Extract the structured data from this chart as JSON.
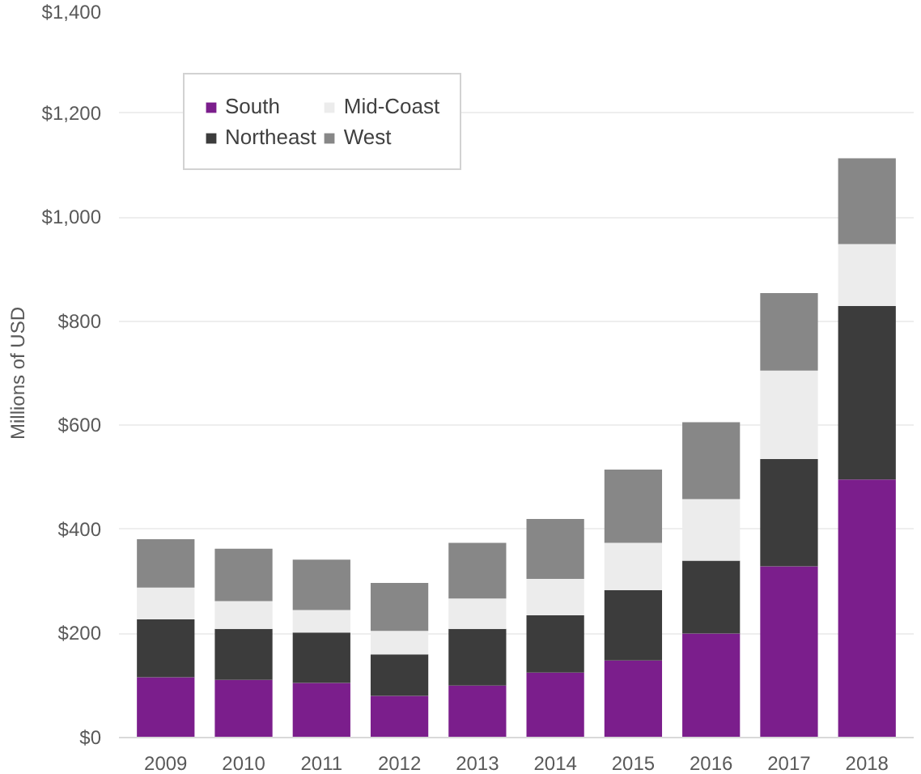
{
  "chart_data": {
    "type": "bar",
    "stacked": true,
    "ylabel": "Millions of USD",
    "categories": [
      "2009",
      "2010",
      "2011",
      "2012",
      "2013",
      "2014",
      "2015",
      "2016",
      "2017",
      "2018"
    ],
    "series": [
      {
        "name": "South",
        "color": "#7b1e8c",
        "values": [
          116,
          111,
          105,
          80,
          100,
          125,
          148,
          200,
          329,
          496
        ]
      },
      {
        "name": "Northeast",
        "color": "#3c3c3c",
        "values": [
          111,
          98,
          97,
          80,
          109,
          110,
          135,
          140,
          206,
          333
        ]
      },
      {
        "name": "Mid-Coast",
        "color": "#ececec",
        "values": [
          61,
          53,
          43,
          45,
          58,
          70,
          91,
          118,
          170,
          119
        ]
      },
      {
        "name": "West",
        "color": "#878787",
        "values": [
          93,
          101,
          97,
          92,
          107,
          115,
          141,
          148,
          149,
          165
        ]
      }
    ],
    "ylim": [
      0,
      1400
    ],
    "yticks": [
      {
        "value": 0,
        "label": "$0"
      },
      {
        "value": 200,
        "label": "$200"
      },
      {
        "value": 400,
        "label": "$400"
      },
      {
        "value": 600,
        "label": "$600"
      },
      {
        "value": 800,
        "label": "$800"
      },
      {
        "value": 1000,
        "label": "$1,000"
      },
      {
        "value": 1200,
        "label": "$1,200"
      },
      {
        "value": 1400,
        "label": "$1,400"
      }
    ],
    "grid": "y",
    "legend": "top left"
  }
}
